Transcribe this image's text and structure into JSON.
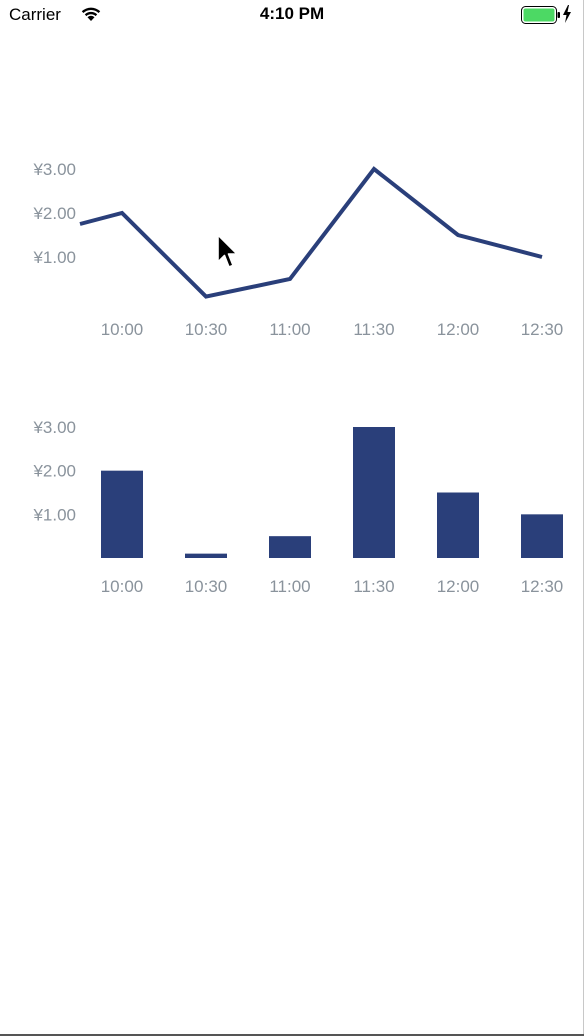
{
  "status_bar": {
    "carrier": "Carrier",
    "time": "4:10 PM",
    "battery_color": "#4cd964"
  },
  "chart_data": [
    {
      "type": "line",
      "categories": [
        "10:00",
        "10:30",
        "11:00",
        "11:30",
        "12:00",
        "12:30"
      ],
      "x": [
        9.75,
        10.0,
        10.5,
        11.0,
        11.5,
        12.0,
        12.5
      ],
      "values": [
        1.75,
        2.0,
        0.1,
        0.5,
        3.0,
        1.5,
        1.0
      ],
      "y_ticks": [
        1,
        2,
        3
      ],
      "y_tick_labels": [
        "¥1.00",
        "¥2.00",
        "¥3.00"
      ],
      "ylim": [
        0,
        3
      ],
      "color": "#2a3f7a",
      "grid": false
    },
    {
      "type": "bar",
      "categories": [
        "10:00",
        "10:30",
        "11:00",
        "11:30",
        "12:00",
        "12:30"
      ],
      "values": [
        2.0,
        0.1,
        0.5,
        3.0,
        1.5,
        1.0
      ],
      "y_ticks": [
        1,
        2,
        3
      ],
      "y_tick_labels": [
        "¥1.00",
        "¥2.00",
        "¥3.00"
      ],
      "ylim": [
        0,
        3
      ],
      "color": "#2a3f7a",
      "grid": false
    }
  ]
}
